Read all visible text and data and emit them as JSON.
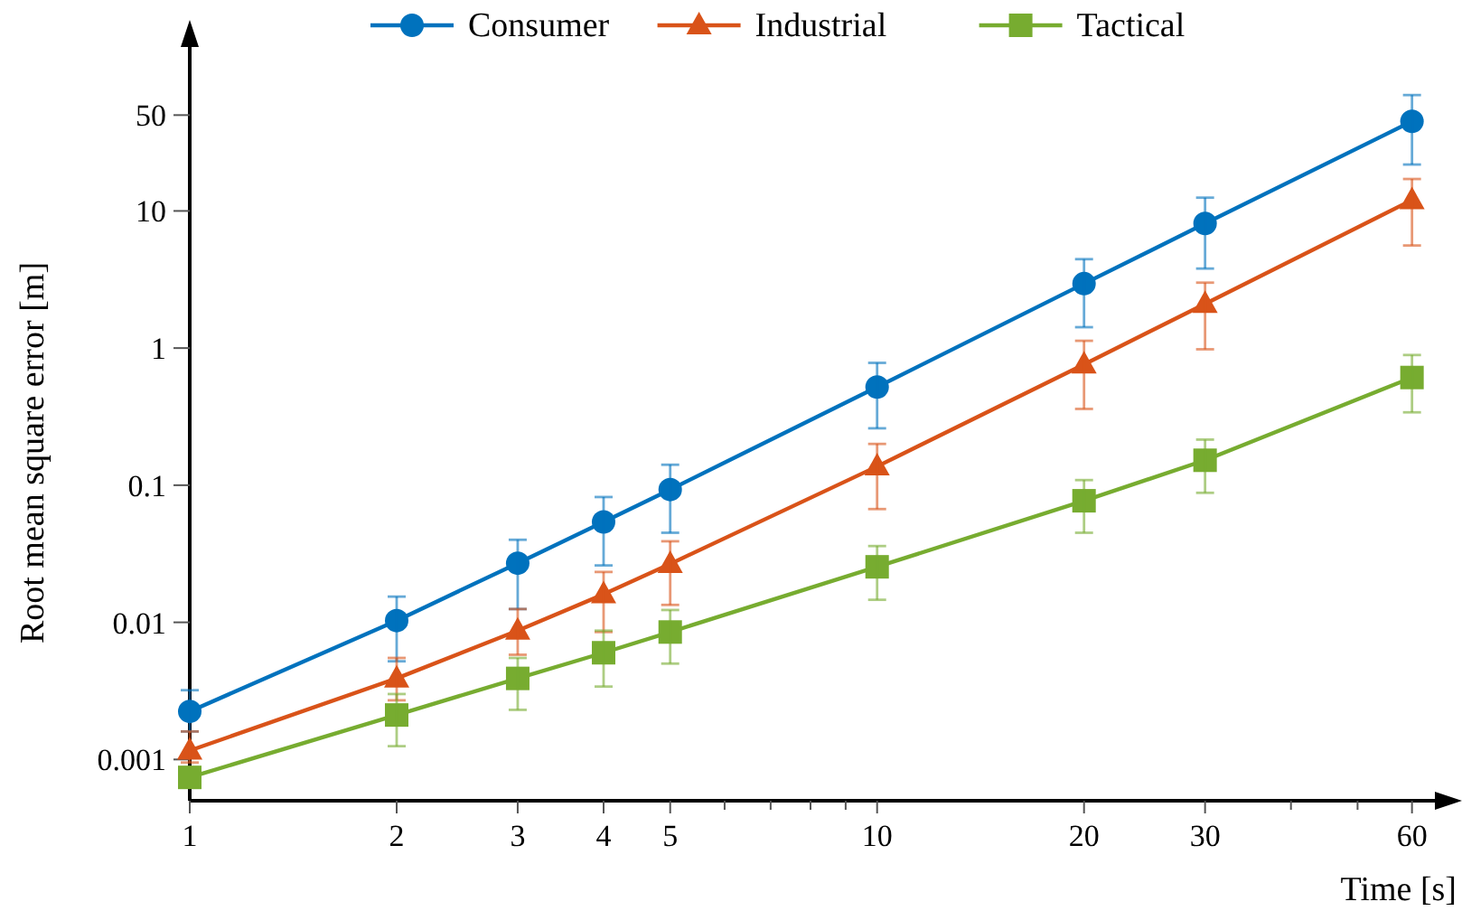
{
  "chart_data": {
    "type": "line",
    "xlabel": "Time [s]",
    "ylabel": "Root mean square error [m]",
    "log": "xy",
    "grid": false,
    "legend": "top",
    "line_style": "solid",
    "x": [
      1,
      2,
      3,
      4,
      5,
      10,
      20,
      30,
      60
    ],
    "xlim": [
      1,
      68
    ],
    "ylim": [
      0.0005,
      200
    ],
    "xticks": [
      1,
      2,
      3,
      4,
      5,
      {
        "value": 6,
        "label": null
      },
      {
        "value": 7,
        "label": null
      },
      {
        "value": 8,
        "label": null
      },
      {
        "value": 9,
        "label": null
      },
      10,
      20,
      30,
      {
        "value": 40,
        "label": null
      },
      {
        "value": 50,
        "label": null
      },
      60
    ],
    "yticks": [
      0.001,
      0.01,
      0.1,
      1,
      10,
      50
    ],
    "series": [
      {
        "name": "Consumer",
        "color": "#0072bd",
        "marker": "circle",
        "values": [
          0.00224,
          0.0103,
          0.027,
          0.054,
          0.093,
          0.52,
          2.95,
          8.1,
          45
        ],
        "errors": [
          [
            0.0016,
            0.0032
          ],
          [
            0.0052,
            0.0154
          ],
          [
            0.0125,
            0.04
          ],
          [
            0.026,
            0.082
          ],
          [
            0.045,
            0.141
          ],
          [
            0.26,
            0.78
          ],
          [
            1.42,
            4.45
          ],
          [
            3.8,
            12.5
          ],
          [
            21.8,
            70
          ]
        ]
      },
      {
        "name": "Industrial",
        "color": "#d95319",
        "marker": "triangle",
        "values": [
          0.00116,
          0.0039,
          0.0087,
          0.016,
          0.0267,
          0.137,
          0.76,
          2.1,
          12
        ],
        "errors": [
          [
            0.00095,
            0.0016
          ],
          [
            0.0027,
            0.0055
          ],
          [
            0.0058,
            0.0125
          ],
          [
            0.0085,
            0.0233
          ],
          [
            0.0134,
            0.039
          ],
          [
            0.067,
            0.2
          ],
          [
            0.36,
            1.13
          ],
          [
            0.98,
            3
          ],
          [
            5.6,
            17.1
          ]
        ]
      },
      {
        "name": "Tactical",
        "color": "#77ac30",
        "marker": "square",
        "values": [
          0.00074,
          0.00211,
          0.0039,
          0.006,
          0.0085,
          0.0254,
          0.077,
          0.152,
          0.61
        ],
        "errors": [
          null,
          [
            0.00125,
            0.003
          ],
          [
            0.0023,
            0.0055
          ],
          [
            0.0034,
            0.0087
          ],
          [
            0.005,
            0.0123
          ],
          [
            0.0146,
            0.036
          ],
          [
            0.045,
            0.109
          ],
          [
            0.088,
            0.215
          ],
          [
            0.34,
            0.89
          ]
        ]
      }
    ]
  }
}
